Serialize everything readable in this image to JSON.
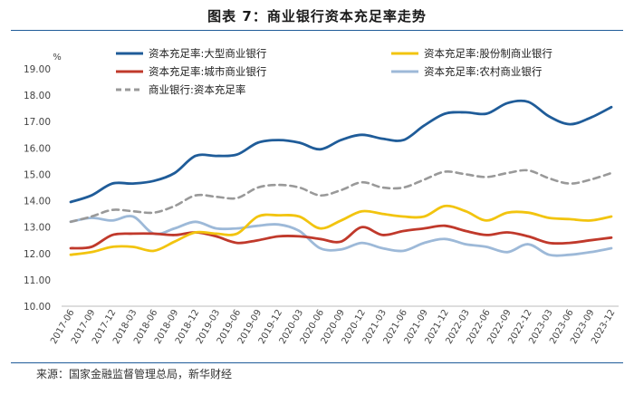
{
  "chart_data": {
    "type": "line",
    "title": "图表 7：商业银行资本充足率走势",
    "ylabel": "%",
    "xlabel": "",
    "ylim": [
      10.0,
      19.0
    ],
    "yticks": [
      "19.00",
      "18.00",
      "17.00",
      "16.00",
      "15.00",
      "14.00",
      "13.00",
      "12.00",
      "11.00",
      "10.00"
    ],
    "ytick_values": [
      19,
      18,
      17,
      16,
      15,
      14,
      13,
      12,
      11,
      10
    ],
    "categories": [
      "2017-06",
      "2017-09",
      "2017-12",
      "2018-03",
      "2018-06",
      "2018-09",
      "2018-12",
      "2019-03",
      "2019-06",
      "2019-09",
      "2019-12",
      "2020-03",
      "2020-06",
      "2020-09",
      "2020-12",
      "2021-03",
      "2021-06",
      "2021-09",
      "2021-12",
      "2022-03",
      "2022-06",
      "2022-09",
      "2022-12",
      "2023-03",
      "2023-06",
      "2023-09",
      "2023-12"
    ],
    "legend_position": "top",
    "series": [
      {
        "name": "资本充足率:大型商业银行",
        "color": "#1f5c99",
        "dash": "solid",
        "values": [
          13.95,
          14.2,
          14.65,
          14.65,
          14.75,
          15.05,
          15.7,
          15.7,
          15.75,
          16.2,
          16.3,
          16.2,
          15.95,
          16.3,
          16.5,
          16.35,
          16.3,
          16.85,
          17.3,
          17.35,
          17.3,
          17.7,
          17.75,
          17.2,
          16.9,
          17.15,
          17.55
        ]
      },
      {
        "name": "资本充足率:股份制商业银行",
        "color": "#f2c40f",
        "dash": "solid",
        "values": [
          11.95,
          12.05,
          12.25,
          12.25,
          12.1,
          12.45,
          12.8,
          12.75,
          12.75,
          13.4,
          13.45,
          13.4,
          12.95,
          13.25,
          13.6,
          13.5,
          13.4,
          13.4,
          13.8,
          13.6,
          13.25,
          13.55,
          13.55,
          13.35,
          13.3,
          13.25,
          13.4
        ]
      },
      {
        "name": "资本充足率:城市商业银行",
        "color": "#c0392b",
        "dash": "solid",
        "values": [
          12.2,
          12.25,
          12.7,
          12.75,
          12.75,
          12.7,
          12.8,
          12.65,
          12.4,
          12.5,
          12.65,
          12.65,
          12.55,
          12.45,
          13.0,
          12.7,
          12.85,
          12.95,
          13.05,
          12.85,
          12.7,
          12.8,
          12.65,
          12.4,
          12.4,
          12.5,
          12.6
        ]
      },
      {
        "name": "资本充足率:农村商业银行",
        "color": "#9db9d8",
        "dash": "solid",
        "values": [
          13.2,
          13.35,
          13.25,
          13.4,
          12.75,
          12.95,
          13.2,
          12.95,
          12.95,
          13.05,
          13.1,
          12.85,
          12.2,
          12.15,
          12.4,
          12.2,
          12.1,
          12.4,
          12.55,
          12.35,
          12.25,
          12.05,
          12.35,
          11.95,
          11.95,
          12.05,
          12.2
        ]
      },
      {
        "name": "商业银行:资本充足率",
        "color": "#999999",
        "dash": "dashed",
        "values": [
          13.2,
          13.4,
          13.65,
          13.6,
          13.55,
          13.8,
          14.2,
          14.15,
          14.1,
          14.5,
          14.6,
          14.5,
          14.2,
          14.4,
          14.7,
          14.5,
          14.5,
          14.8,
          15.1,
          15.0,
          14.9,
          15.05,
          15.15,
          14.85,
          14.65,
          14.8,
          15.05
        ]
      }
    ]
  },
  "header": {
    "title": "图表 7：商业银行资本充足率走势"
  },
  "footer": {
    "source": "来源：国家金融监督管理总局，新华财经"
  }
}
